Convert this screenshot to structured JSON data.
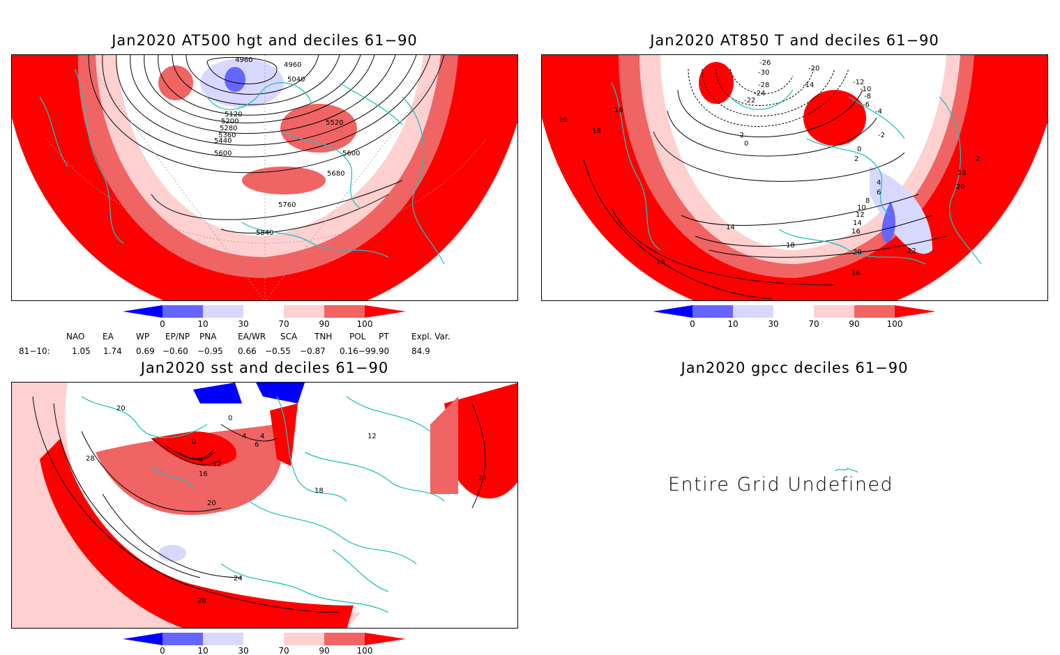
{
  "panels": [
    {
      "id": "p1",
      "title": "Jan2020 AT500 hgt and deciles 61−90"
    },
    {
      "id": "p2",
      "title": "Jan2020 AT850 T and deciles 61−90"
    },
    {
      "id": "p3",
      "title": "Jan2020 sst and deciles 61−90"
    },
    {
      "id": "p4",
      "title": "Jan2020 gpcc deciles 61−90",
      "message": "Entire Grid Undefined"
    }
  ],
  "colorbar": {
    "ticks": [
      "0",
      "10",
      "30",
      "70",
      "90",
      "100"
    ],
    "colors": [
      "#0000ff",
      "#6666ff",
      "#d8d8ff",
      "#ffffff",
      "#ffd0d0",
      "#f06464",
      "#ff0000"
    ]
  },
  "contour_labels": {
    "p1": [
      "4960",
      "4960",
      "5040",
      "5120",
      "5200",
      "5280",
      "5360",
      "5440",
      "5520",
      "5600",
      "5600",
      "5680",
      "5760",
      "5840"
    ],
    "p2": [
      "-26",
      "-30",
      "-28",
      "-24",
      "-22",
      "-20",
      "-14",
      "-12",
      "-10",
      "-8",
      "-6",
      "-4",
      "-2",
      "-2",
      "0",
      "0",
      "2",
      "2",
      "4",
      "6",
      "8",
      "10",
      "12",
      "14",
      "14",
      "16",
      "16",
      "16",
      "16",
      "18",
      "18",
      "18",
      "20",
      "20",
      "22",
      "16"
    ],
    "p3": [
      "20",
      "28",
      "0",
      "0",
      "4",
      "4",
      "6",
      "4",
      "12",
      "16",
      "20",
      "24",
      "28",
      "28",
      "18",
      "12"
    ]
  },
  "indices": {
    "headers": [
      "NAO",
      "EA",
      "WP",
      "EP/NP",
      "PNA",
      "EA/WR",
      "SCA",
      "TNH",
      "POL",
      "PT",
      "Expl. Var."
    ],
    "row_label": "81−10:",
    "values": [
      "1.05",
      "1.74",
      "0.69",
      "−0.60",
      "−0.95",
      "0.66",
      "−0.55",
      "−0.87",
      "0.16−99.90",
      "84.9"
    ]
  }
}
